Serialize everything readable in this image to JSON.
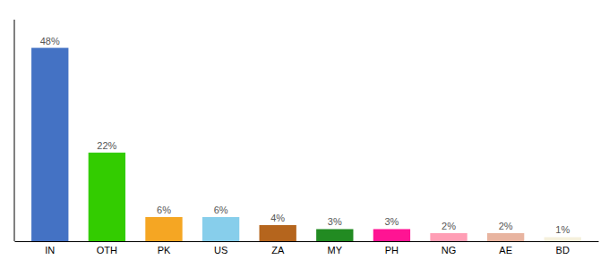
{
  "chart_data": {
    "type": "bar",
    "categories": [
      "IN",
      "OTH",
      "PK",
      "US",
      "ZA",
      "MY",
      "PH",
      "NG",
      "AE",
      "BD"
    ],
    "values": [
      48,
      22,
      6,
      6,
      4,
      3,
      3,
      2,
      2,
      1
    ],
    "value_labels": [
      "48%",
      "22%",
      "6%",
      "6%",
      "4%",
      "3%",
      "3%",
      "2%",
      "2%",
      "1%"
    ],
    "colors": [
      "#4472c4",
      "#33cc00",
      "#f5a623",
      "#87ceeb",
      "#b5651d",
      "#228b22",
      "#ff1493",
      "#ff9eb5",
      "#e8b4a0",
      "#f5f0dc"
    ],
    "ylim": [
      0,
      55
    ],
    "data_labels": true,
    "tick_labels": "x"
  }
}
